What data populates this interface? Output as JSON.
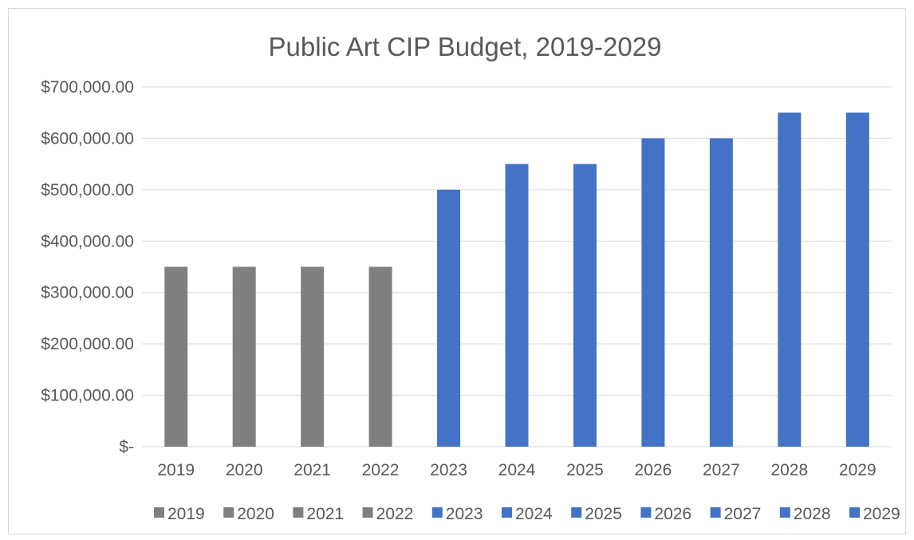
{
  "chart_data": {
    "type": "bar",
    "title": "Public Art CIP Budget, 2019-2029",
    "xlabel": "",
    "ylabel": "",
    "categories": [
      "2019",
      "2020",
      "2021",
      "2022",
      "2023",
      "2024",
      "2025",
      "2026",
      "2027",
      "2028",
      "2029"
    ],
    "values": [
      350000,
      350000,
      350000,
      350000,
      500000,
      550000,
      550000,
      600000,
      600000,
      650000,
      650000
    ],
    "ylim": [
      0,
      700000
    ],
    "yticks": [
      0,
      100000,
      200000,
      300000,
      400000,
      500000,
      600000,
      700000
    ],
    "ytick_labels": [
      "$-",
      "$100,000.00",
      "$200,000.00",
      "$300,000.00",
      "$400,000.00",
      "$500,000.00",
      "$600,000.00",
      "$700,000.00"
    ],
    "bar_colors": [
      "#7f7f7f",
      "#7f7f7f",
      "#7f7f7f",
      "#7f7f7f",
      "#4472c4",
      "#4472c4",
      "#4472c4",
      "#4472c4",
      "#4472c4",
      "#4472c4",
      "#4472c4"
    ],
    "legend": {
      "placement": "bottom",
      "entries": [
        "2019",
        "2020",
        "2021",
        "2022",
        "2023",
        "2024",
        "2025",
        "2026",
        "2027",
        "2028",
        "2029"
      ]
    },
    "grid": true
  }
}
